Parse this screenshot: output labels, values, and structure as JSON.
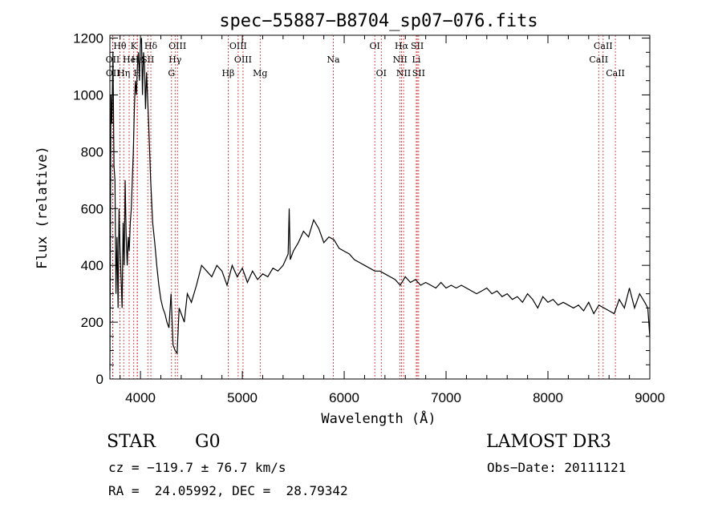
{
  "chart_data": {
    "type": "line",
    "title": "spec−55887−B8704_sp07−076.fits",
    "xlabel": "Wavelength (Å)",
    "ylabel": "Flux (relative)",
    "xlim": [
      3700,
      9000
    ],
    "ylim": [
      0,
      1210
    ],
    "x_ticks": [
      4000,
      5000,
      6000,
      7000,
      8000,
      9000
    ],
    "y_ticks": [
      0,
      200,
      400,
      600,
      800,
      1000,
      1200
    ],
    "x_tick_labels": [
      "4000",
      "5000",
      "6000",
      "7000",
      "8000",
      "9000"
    ],
    "y_tick_labels": [
      "0",
      "200",
      "400",
      "600",
      "800",
      "1000",
      "1200"
    ],
    "spectrum": {
      "name": "flux",
      "color": "#000000",
      "x": [
        3700,
        3710,
        3720,
        3730,
        3740,
        3750,
        3760,
        3770,
        3780,
        3790,
        3800,
        3810,
        3820,
        3830,
        3840,
        3850,
        3860,
        3870,
        3880,
        3890,
        3900,
        3910,
        3920,
        3930,
        3940,
        3950,
        3960,
        3970,
        3980,
        3990,
        4000,
        4010,
        4020,
        4030,
        4040,
        4050,
        4060,
        4080,
        4100,
        4120,
        4140,
        4160,
        4180,
        4200,
        4220,
        4240,
        4260,
        4280,
        4300,
        4320,
        4340,
        4360,
        4380,
        4400,
        4430,
        4460,
        4500,
        4550,
        4600,
        4650,
        4700,
        4750,
        4800,
        4850,
        4900,
        4950,
        5000,
        5050,
        5100,
        5150,
        5200,
        5250,
        5300,
        5350,
        5400,
        5450,
        5460,
        5470,
        5500,
        5550,
        5600,
        5650,
        5700,
        5750,
        5800,
        5850,
        5900,
        5950,
        6000,
        6050,
        6100,
        6150,
        6200,
        6250,
        6300,
        6350,
        6400,
        6450,
        6500,
        6550,
        6600,
        6650,
        6700,
        6750,
        6800,
        6850,
        6900,
        6950,
        7000,
        7050,
        7100,
        7150,
        7200,
        7250,
        7300,
        7350,
        7400,
        7450,
        7500,
        7550,
        7600,
        7650,
        7700,
        7750,
        7800,
        7850,
        7900,
        7950,
        8000,
        8050,
        8100,
        8150,
        8200,
        8250,
        8300,
        8350,
        8400,
        8450,
        8500,
        8550,
        8600,
        8650,
        8700,
        8750,
        8800,
        8850,
        8900,
        8950,
        8980,
        9000
      ],
      "y": [
        30,
        1000,
        900,
        1150,
        750,
        700,
        300,
        500,
        250,
        600,
        450,
        350,
        250,
        550,
        400,
        700,
        500,
        400,
        500,
        450,
        550,
        600,
        700,
        800,
        950,
        1050,
        1000,
        1100,
        1150,
        1050,
        1180,
        1200,
        1000,
        1150,
        1100,
        950,
        1080,
        900,
        700,
        550,
        480,
        400,
        330,
        280,
        250,
        230,
        200,
        180,
        300,
        120,
        100,
        90,
        250,
        230,
        200,
        300,
        270,
        330,
        400,
        380,
        360,
        400,
        380,
        330,
        400,
        360,
        390,
        340,
        380,
        350,
        370,
        360,
        390,
        380,
        400,
        440,
        600,
        420,
        450,
        480,
        520,
        500,
        560,
        530,
        480,
        500,
        490,
        460,
        450,
        440,
        420,
        410,
        400,
        390,
        380,
        380,
        370,
        360,
        350,
        330,
        360,
        340,
        350,
        330,
        340,
        330,
        320,
        340,
        320,
        330,
        320,
        330,
        320,
        310,
        300,
        310,
        320,
        300,
        310,
        290,
        300,
        280,
        290,
        270,
        300,
        280,
        250,
        290,
        270,
        280,
        260,
        270,
        260,
        250,
        260,
        240,
        270,
        230,
        260,
        250,
        240,
        230,
        280,
        250,
        320,
        250,
        300,
        270,
        250,
        150
      ]
    },
    "emission_lines": [
      {
        "label": "Hθ",
        "x": 3798,
        "row": 1
      },
      {
        "label": "K",
        "x": 3934,
        "row": 1
      },
      {
        "label": "Hδ",
        "x": 4102,
        "row": 1
      },
      {
        "label": "OIII",
        "x": 4363,
        "row": 1
      },
      {
        "label": "OIII",
        "x": 4959,
        "row": 1
      },
      {
        "label": "OI",
        "x": 6300,
        "row": 1
      },
      {
        "label": "Hα",
        "x": 6563,
        "row": 1
      },
      {
        "label": "SII",
        "x": 6717,
        "row": 1
      },
      {
        "label": "CaII",
        "x": 8542,
        "row": 1
      },
      {
        "label": "OII",
        "x": 3727,
        "row": 2
      },
      {
        "label": "He",
        "x": 3889,
        "row": 2
      },
      {
        "label": "Hε",
        "x": 3970,
        "row": 2
      },
      {
        "label": "SII",
        "x": 4072,
        "row": 2
      },
      {
        "label": "Hγ",
        "x": 4340,
        "row": 2
      },
      {
        "label": "OIII",
        "x": 5007,
        "row": 2
      },
      {
        "label": "Na",
        "x": 5893,
        "row": 2
      },
      {
        "label": "NII",
        "x": 6548,
        "row": 2
      },
      {
        "label": "Li",
        "x": 6708,
        "row": 2
      },
      {
        "label": "CaII",
        "x": 8498,
        "row": 2
      },
      {
        "label": "OII",
        "x": 3729,
        "row": 3
      },
      {
        "label": "Hη",
        "x": 3835,
        "row": 3
      },
      {
        "label": "H",
        "x": 3968,
        "row": 3
      },
      {
        "label": "G",
        "x": 4305,
        "row": 3
      },
      {
        "label": "Hβ",
        "x": 4861,
        "row": 3
      },
      {
        "label": "Mg",
        "x": 5175,
        "row": 3
      },
      {
        "label": "OI",
        "x": 6364,
        "row": 3
      },
      {
        "label": "NII",
        "x": 6583,
        "row": 3
      },
      {
        "label": "SII",
        "x": 6731,
        "row": 3
      },
      {
        "label": "CaII",
        "x": 8662,
        "row": 3
      }
    ],
    "line_color": "#cc2222"
  },
  "info": {
    "class_label": "STAR",
    "subclass_label": "G0",
    "survey_label": "LAMOST DR3",
    "cz_text": "cz = −119.7 ± 76.7 km/s",
    "obs_date_text": "Obs−Date: 20111121",
    "coords_text": "RA =  24.05992, DEC =  28.79342"
  }
}
